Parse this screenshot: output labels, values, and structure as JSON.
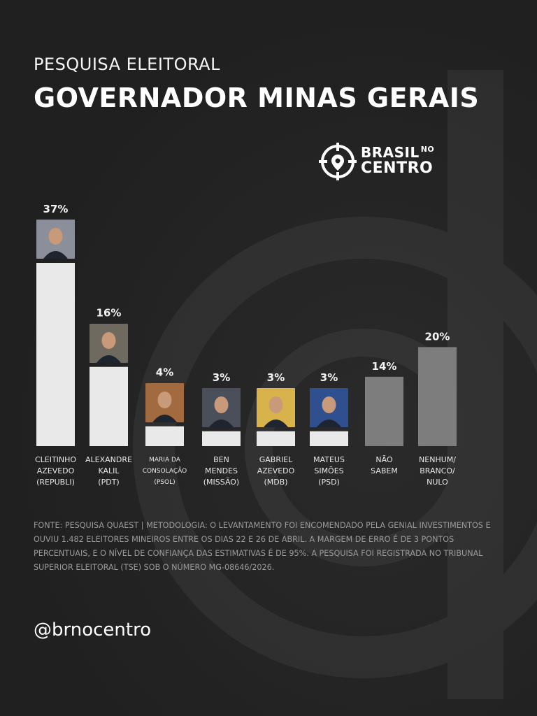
{
  "header": {
    "subtitle": "PESQUISA ELEITORAL",
    "title": "GOVERNADOR MINAS GERAIS"
  },
  "brand": {
    "line1": "BRASIL",
    "line1_small": "NO",
    "line2": "CENTRO",
    "icon": "target-pin-logo-icon"
  },
  "chart_data": {
    "type": "bar",
    "categories": [
      "CLEITINHO\nAZEVEDO\n(REPUBLI)",
      "ALEXANDRE\nKALIL\n(PDT)",
      "MARIA DA\nCONSOLAÇÃO\n(PSOL)",
      "BEN\nMENDES\n(MISSÃO)",
      "GABRIEL\nAZEVEDO\n(MDB)",
      "MATEUS\nSIMÕES\n(PSD)",
      "NÃO\nSABEM",
      "NENHUM/\nBRANCO/\nNULO"
    ],
    "values": [
      37,
      16,
      4,
      3,
      3,
      3,
      14,
      20
    ],
    "value_labels": [
      "37%",
      "16%",
      "4%",
      "3%",
      "3%",
      "3%",
      "14%",
      "20%"
    ],
    "has_photo": [
      true,
      true,
      true,
      true,
      true,
      true,
      false,
      false
    ],
    "colors": {
      "candidate_bar": "#e9e9e9",
      "other_bar": "#7d7d7d"
    },
    "ylim": [
      0,
      37
    ],
    "grid": false
  },
  "footer": {
    "source": "FONTE: PESQUISA QUAEST | METODOLOGIA: O LEVANTAMENTO FOI ENCOMENDADO PELA GENIAL INVESTIMENTOS E OUVIU 1.482 ELEITORES MINEIROS ENTRE OS DIAS 22 E 26 DE ABRIL. A MARGEM DE ERRO É DE 3 PONTOS PERCENTUAIS, E O NÍVEL DE CONFIANÇA DAS ESTIMATIVAS É DE 95%. A PESQUISA FOI REGISTRADA NO TRIBUNAL SUPERIOR ELEITORAL (TSE) SOB O NÚMERO MG-08646/2026.",
    "handle": "@brnocentro"
  }
}
